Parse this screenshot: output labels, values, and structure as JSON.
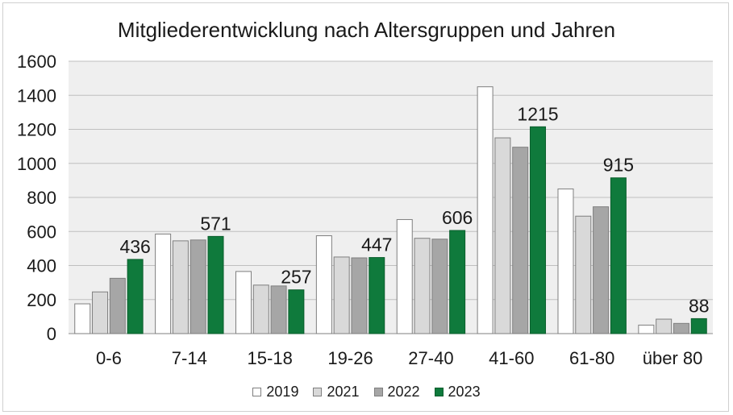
{
  "chart_data": {
    "type": "bar",
    "title": "Mitgliederentwicklung nach Altersgruppen und Jahren",
    "xlabel": "",
    "ylabel": "",
    "ylim": [
      0,
      1600
    ],
    "yticks": [
      0,
      200,
      400,
      600,
      800,
      1000,
      1200,
      1400,
      1600
    ],
    "grid": true,
    "legend_position": "bottom",
    "categories": [
      "0-6",
      "7-14",
      "15-18",
      "19-26",
      "27-40",
      "41-60",
      "61-80",
      "über 80"
    ],
    "series": [
      {
        "name": "2019",
        "color": "#ffffff",
        "values": [
          175,
          585,
          365,
          575,
          670,
          1450,
          850,
          50
        ],
        "labels": false
      },
      {
        "name": "2021",
        "color": "#d9d9d9",
        "values": [
          245,
          545,
          285,
          450,
          560,
          1150,
          690,
          85
        ],
        "labels": false
      },
      {
        "name": "2022",
        "color": "#a6a6a6",
        "values": [
          325,
          550,
          280,
          445,
          555,
          1095,
          745,
          60
        ],
        "labels": false
      },
      {
        "name": "2023",
        "color": "#0f7a3c",
        "values": [
          436,
          571,
          257,
          447,
          606,
          1215,
          915,
          88
        ],
        "labels": true
      }
    ]
  }
}
